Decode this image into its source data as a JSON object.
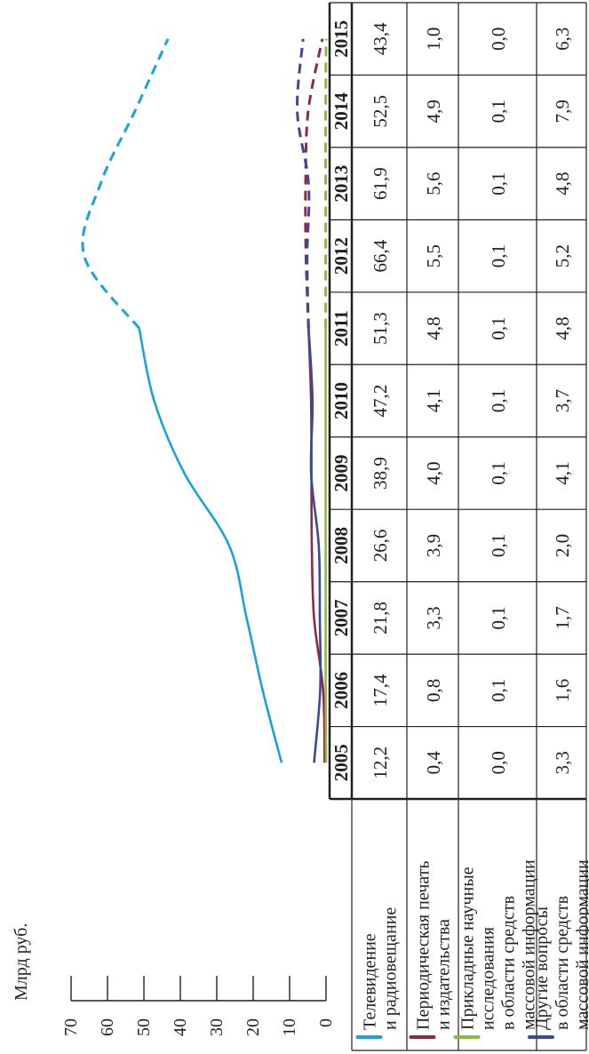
{
  "chart_data": {
    "type": "line",
    "ylabel": "Млрд руб.",
    "y_ticks": [
      "0",
      "10",
      "20",
      "30",
      "40",
      "50",
      "60",
      "70"
    ],
    "ylim": [
      0,
      70
    ],
    "categories": [
      "2005",
      "2006",
      "2007",
      "2008",
      "2009",
      "2010",
      "2011",
      "2012",
      "2013",
      "2014",
      "2015"
    ],
    "line_style": "solid through 2011, dashed 2011–2015",
    "series": [
      {
        "name": "Телевидение и радиовещание",
        "name_lines": [
          "Телевидение",
          "и радиовещание"
        ],
        "color": "#1aa3d9",
        "values": [
          12.2,
          17.4,
          21.8,
          26.6,
          38.9,
          47.2,
          51.3,
          66.4,
          61.9,
          52.5,
          43.4
        ],
        "labels": [
          "12,2",
          "17,4",
          "21,8",
          "26,6",
          "38,9",
          "47,2",
          "51,3",
          "66,4",
          "61,9",
          "52,5",
          "43,4"
        ]
      },
      {
        "name": "Периодическая печать и издательства",
        "name_lines": [
          "Периодическая печать",
          "и издательства"
        ],
        "color": "#8e2a47",
        "values": [
          0.4,
          0.8,
          3.3,
          3.9,
          4.0,
          4.1,
          4.8,
          5.5,
          5.6,
          4.9,
          1.0
        ],
        "labels": [
          "0,4",
          "0,8",
          "3,3",
          "3,9",
          "4,0",
          "4,1",
          "4,8",
          "5,5",
          "5,6",
          "4,9",
          "1,0"
        ]
      },
      {
        "name": "Прикладные научные исследования в области средств массовой информации",
        "name_lines": [
          "Прикладные научные",
          "исследования",
          "в области средств",
          "массовой информации"
        ],
        "color": "#8cbd3a",
        "values": [
          0.0,
          0.1,
          0.1,
          0.1,
          0.1,
          0.1,
          0.1,
          0.1,
          0.1,
          0.1,
          0.0
        ],
        "labels": [
          "0,0",
          "0,1",
          "0,1",
          "0,1",
          "0,1",
          "0,1",
          "0,1",
          "0,1",
          "0,1",
          "0,1",
          "0,0"
        ]
      },
      {
        "name": "Другие вопросы в области средств массовой информации",
        "name_lines": [
          "Другие вопросы",
          "в области средств",
          "массовой информации"
        ],
        "color": "#3d4a8f",
        "values": [
          3.3,
          1.6,
          1.7,
          2.0,
          4.1,
          3.7,
          4.8,
          5.2,
          4.8,
          7.9,
          6.3
        ],
        "labels": [
          "3,3",
          "1,6",
          "1,7",
          "2,0",
          "4,1",
          "3,7",
          "4,8",
          "5,2",
          "4,8",
          "7,9",
          "6,3"
        ]
      }
    ]
  }
}
